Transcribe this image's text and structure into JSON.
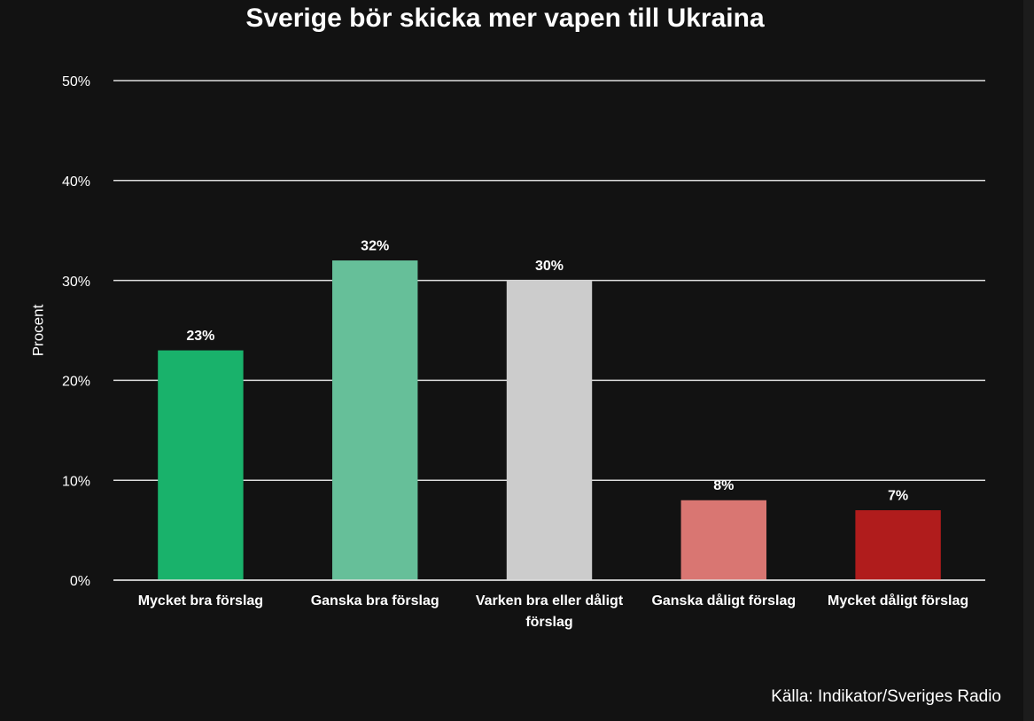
{
  "chart_data": {
    "type": "bar",
    "title": "Sverige bör skicka mer vapen till Ukraina",
    "y_label": "Procent",
    "source": "Källa: Indikator/Sveriges Radio",
    "categories": [
      "Mycket bra förslag",
      "Ganska bra förslag",
      "Varken bra eller dåligt förslag",
      "Ganska dåligt förslag",
      "Mycket dåligt förslag"
    ],
    "values": [
      23,
      32,
      30,
      8,
      7
    ],
    "value_labels": [
      "23%",
      "32%",
      "30%",
      "8%",
      "7%"
    ],
    "colors": [
      "#19b26b",
      "#66bf99",
      "#cccccc",
      "#d97672",
      "#b01c1c"
    ],
    "ylim": [
      0,
      50
    ],
    "yticks": [
      {
        "value": 0,
        "label": "0%"
      },
      {
        "value": 10,
        "label": "10%"
      },
      {
        "value": 20,
        "label": "20%"
      },
      {
        "value": 30,
        "label": "30%"
      },
      {
        "value": 40,
        "label": "40%"
      },
      {
        "value": 50,
        "label": "50%"
      }
    ],
    "grid": true
  }
}
